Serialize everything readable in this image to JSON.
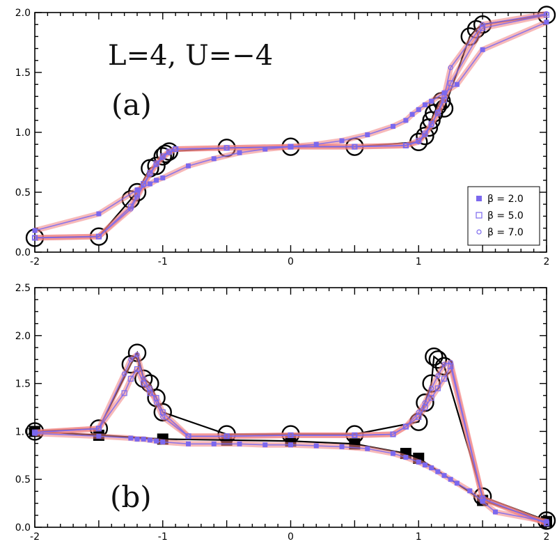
{
  "chart_data": [
    {
      "id": "a",
      "type": "line",
      "annotations": [
        "L=4,  U=−4",
        "(a)"
      ],
      "xlim": [
        -2,
        2
      ],
      "ylim": [
        0,
        2
      ],
      "xticks": [
        -2,
        -1,
        0,
        1,
        2
      ],
      "yticks": [
        0,
        0.5,
        1,
        1.5,
        2
      ],
      "xtick_labels": [
        "-2",
        "-1",
        "0",
        "1",
        "2"
      ],
      "ytick_labels": [
        "0.0",
        "0.5",
        "1.0",
        "1.5",
        "2.0"
      ],
      "legend": {
        "placement": "lower-right",
        "entries": [
          "β = 2.0",
          "β = 5.0",
          "β = 7.0"
        ]
      },
      "colors": {
        "sim": "#7b68ee",
        "band": "#f08080",
        "ref": "#000000"
      },
      "series": [
        {
          "name": "β = 2.0",
          "marker": "filled-square",
          "x": [
            -2,
            -1.5,
            -1.2,
            -1.1,
            -1.05,
            -1.0,
            -0.8,
            -0.6,
            -0.4,
            -0.2,
            0,
            0.2,
            0.4,
            0.6,
            0.8,
            0.9,
            0.95,
            1.0,
            1.05,
            1.1,
            1.2,
            1.3,
            1.5,
            2.0
          ],
          "y": [
            0.18,
            0.32,
            0.52,
            0.57,
            0.6,
            0.62,
            0.72,
            0.78,
            0.83,
            0.86,
            0.88,
            0.9,
            0.93,
            0.98,
            1.05,
            1.1,
            1.15,
            1.19,
            1.23,
            1.26,
            1.33,
            1.4,
            1.69,
            1.92
          ]
        },
        {
          "name": "β = 5.0",
          "marker": "open-square",
          "x": [
            -2,
            -1.5,
            -1.25,
            -1.2,
            -1.15,
            -1.1,
            -1.05,
            -1.0,
            -0.95,
            -0.9,
            -0.5,
            0,
            0.5,
            0.9,
            1.0,
            1.05,
            1.1,
            1.15,
            1.2,
            1.25,
            1.5,
            2.0
          ],
          "y": [
            0.12,
            0.13,
            0.38,
            0.48,
            0.57,
            0.66,
            0.74,
            0.8,
            0.84,
            0.86,
            0.87,
            0.88,
            0.88,
            0.89,
            0.93,
            0.99,
            1.07,
            1.16,
            1.27,
            1.41,
            1.87,
            1.98
          ]
        },
        {
          "name": "β = 7.0",
          "marker": "open-circle",
          "x": [
            -2,
            -1.5,
            -1.25,
            -1.2,
            -1.15,
            -1.1,
            -1.05,
            -1.0,
            -0.95,
            -0.9,
            -0.5,
            0,
            0.5,
            0.9,
            1.0,
            1.05,
            1.1,
            1.15,
            1.2,
            1.25,
            1.5,
            2.0
          ],
          "y": [
            0.12,
            0.13,
            0.36,
            0.46,
            0.56,
            0.65,
            0.73,
            0.79,
            0.83,
            0.86,
            0.87,
            0.88,
            0.88,
            0.89,
            0.92,
            0.98,
            1.06,
            1.17,
            1.3,
            1.54,
            1.9,
            1.99
          ]
        }
      ],
      "reference": {
        "x": [
          -2,
          -1.5,
          -1.25,
          -1.2,
          -1.1,
          -1.05,
          -1.0,
          -0.98,
          -0.95,
          -0.5,
          0,
          0.5,
          1.0,
          1.05,
          1.08,
          1.1,
          1.12,
          1.15,
          1.18,
          1.2,
          1.4,
          1.45,
          1.5,
          2.0
        ],
        "y": [
          0.12,
          0.13,
          0.44,
          0.5,
          0.7,
          0.72,
          0.8,
          0.82,
          0.84,
          0.87,
          0.88,
          0.88,
          0.92,
          0.97,
          1.04,
          1.1,
          1.16,
          1.22,
          1.26,
          1.2,
          1.8,
          1.86,
          1.9,
          1.98
        ]
      }
    },
    {
      "id": "b",
      "type": "line",
      "annotations": [
        "(b)"
      ],
      "xlim": [
        -2,
        2
      ],
      "ylim": [
        0,
        2.5
      ],
      "xticks": [
        -2,
        -1,
        0,
        1,
        2
      ],
      "yticks": [
        0,
        0.5,
        1,
        1.5,
        2,
        2.5
      ],
      "xtick_labels": [
        "-2",
        "-1",
        "0",
        "1",
        "2"
      ],
      "ytick_labels": [
        "0.0",
        "0.5",
        "1.0",
        "1.5",
        "2.0",
        "2.5"
      ],
      "colors": {
        "sim": "#7b68ee",
        "band": "#f08080",
        "ref": "#000000"
      },
      "series": [
        {
          "name": "β = 2.0",
          "marker": "filled-square",
          "x": [
            -2,
            -1.5,
            -1.25,
            -1.2,
            -1.15,
            -1.1,
            -1.05,
            -1.0,
            -0.8,
            -0.6,
            -0.4,
            -0.2,
            0,
            0.2,
            0.4,
            0.6,
            0.8,
            0.9,
            1.0,
            1.05,
            1.1,
            1.15,
            1.2,
            1.25,
            1.3,
            1.4,
            1.5,
            1.6,
            2.0
          ],
          "y": [
            0.98,
            0.95,
            0.93,
            0.92,
            0.92,
            0.91,
            0.9,
            0.89,
            0.87,
            0.87,
            0.87,
            0.86,
            0.86,
            0.85,
            0.84,
            0.82,
            0.77,
            0.73,
            0.68,
            0.65,
            0.62,
            0.58,
            0.54,
            0.5,
            0.46,
            0.38,
            0.27,
            0.16,
            0.06
          ]
        },
        {
          "name": "β = 5.0",
          "marker": "open-square",
          "x": [
            -2,
            -1.5,
            -1.3,
            -1.25,
            -1.2,
            -1.15,
            -1.1,
            -1.05,
            -1.0,
            -0.8,
            -0.5,
            0,
            0.5,
            0.8,
            0.9,
            1.0,
            1.05,
            1.1,
            1.15,
            1.2,
            1.25,
            1.5,
            2.0
          ],
          "y": [
            0.99,
            1.03,
            1.4,
            1.55,
            1.65,
            1.5,
            1.4,
            1.35,
            1.2,
            0.95,
            0.95,
            0.96,
            0.96,
            0.97,
            1.05,
            1.15,
            1.25,
            1.35,
            1.45,
            1.55,
            1.68,
            0.3,
            0.04
          ]
        },
        {
          "name": "β = 7.0",
          "marker": "open-circle",
          "x": [
            -2,
            -1.5,
            -1.3,
            -1.25,
            -1.2,
            -1.15,
            -1.1,
            -1.05,
            -1.0,
            -0.8,
            -0.5,
            0,
            0.5,
            0.8,
            0.9,
            1.0,
            1.05,
            1.1,
            1.15,
            1.2,
            1.25,
            1.5,
            2.0
          ],
          "y": [
            0.99,
            1.03,
            1.6,
            1.75,
            1.8,
            1.55,
            1.45,
            1.3,
            1.15,
            0.95,
            0.95,
            0.96,
            0.96,
            0.97,
            1.05,
            1.2,
            1.3,
            1.45,
            1.58,
            1.7,
            1.72,
            0.3,
            0.04
          ]
        }
      ],
      "reference": {
        "x": [
          -2,
          -1.5,
          -1.25,
          -1.2,
          -1.15,
          -1.1,
          -1.05,
          -1.0,
          -0.5,
          0,
          0.5,
          1.0,
          1.05,
          1.1,
          1.12,
          1.15,
          1.2,
          1.5,
          2.0
        ],
        "y": [
          1.0,
          1.03,
          1.7,
          1.82,
          1.55,
          1.5,
          1.35,
          1.2,
          0.97,
          0.97,
          0.97,
          1.1,
          1.3,
          1.5,
          1.78,
          1.75,
          1.68,
          0.32,
          0.07
        ]
      },
      "reference2": {
        "x": [
          -2,
          -1.5,
          -1.0,
          -0.5,
          0,
          0.5,
          0.9,
          1.0,
          1.5,
          2.0
        ],
        "y": [
          1.0,
          0.96,
          0.92,
          0.91,
          0.9,
          0.87,
          0.77,
          0.72,
          0.28,
          0.06
        ]
      }
    }
  ]
}
